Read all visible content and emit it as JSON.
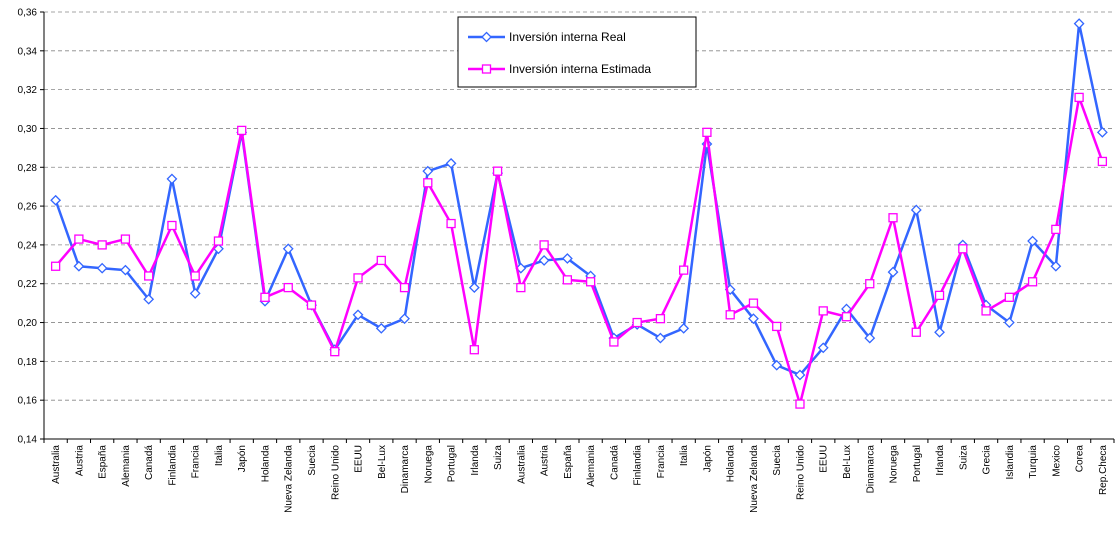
{
  "chart_data": {
    "type": "line",
    "title": "",
    "xlabel": "",
    "ylabel": "",
    "ylim": [
      0.14,
      0.36
    ],
    "y_ticks": [
      "0,14",
      "0,16",
      "0,18",
      "0,20",
      "0,22",
      "0,24",
      "0,26",
      "0,28",
      "0,30",
      "0,32",
      "0,34",
      "0,36"
    ],
    "grid": "horizontal dashed",
    "legend_position": "top-center",
    "categories": [
      "Australia",
      "Austria",
      "España",
      "Alemania",
      "Canadá",
      "Finlandia",
      "Francia",
      "Italia",
      "Japón",
      "Holanda",
      "Nueva Zelanda",
      "Suecia",
      "Reino Unido",
      "EEUU",
      "Bel-Lux",
      "Dinamarca",
      "Noruega",
      "Portugal",
      "Irlanda",
      "Suiza",
      "Australia",
      "Austria",
      "España",
      "Alemania",
      "Canadá",
      "Finlandia",
      "Francia",
      "Italia",
      "Japón",
      "Holanda",
      "Nueva Zelanda",
      "Suecia",
      "Reino Unido",
      "EEUU",
      "Bel-Lux",
      "Dinamarca",
      "Noruega",
      "Portugal",
      "Irlanda",
      "Suiza",
      "Grecia",
      "Islandia",
      "Turquia",
      "Mexico",
      "Corea",
      "Rep.Checa"
    ],
    "series": [
      {
        "name": "Inversión interna Real",
        "color": "#3366ff",
        "marker": "diamond",
        "values": [
          0.263,
          0.229,
          0.228,
          0.227,
          0.212,
          0.274,
          0.215,
          0.238,
          0.298,
          0.211,
          0.238,
          0.209,
          0.186,
          0.204,
          0.197,
          0.202,
          0.278,
          0.282,
          0.218,
          0.277,
          0.228,
          0.232,
          0.233,
          0.224,
          0.192,
          0.199,
          0.192,
          0.197,
          0.292,
          0.217,
          0.202,
          0.178,
          0.173,
          0.187,
          0.207,
          0.192,
          0.226,
          0.258,
          0.195,
          0.24,
          0.209,
          0.2,
          0.242,
          0.229,
          0.354,
          0.298
        ]
      },
      {
        "name": "Inversión interna Estimada",
        "color": "#ff00ff",
        "marker": "square",
        "values": [
          0.229,
          0.243,
          0.24,
          0.243,
          0.224,
          0.25,
          0.224,
          0.242,
          0.299,
          0.213,
          0.218,
          0.209,
          0.185,
          0.223,
          0.232,
          0.218,
          0.272,
          0.251,
          0.186,
          0.278,
          0.218,
          0.24,
          0.222,
          0.221,
          0.19,
          0.2,
          0.202,
          0.227,
          0.298,
          0.204,
          0.21,
          0.198,
          0.158,
          0.206,
          0.203,
          0.22,
          0.254,
          0.195,
          0.214,
          0.238,
          0.206,
          0.213,
          0.221,
          0.248,
          0.316,
          0.283
        ]
      }
    ]
  }
}
